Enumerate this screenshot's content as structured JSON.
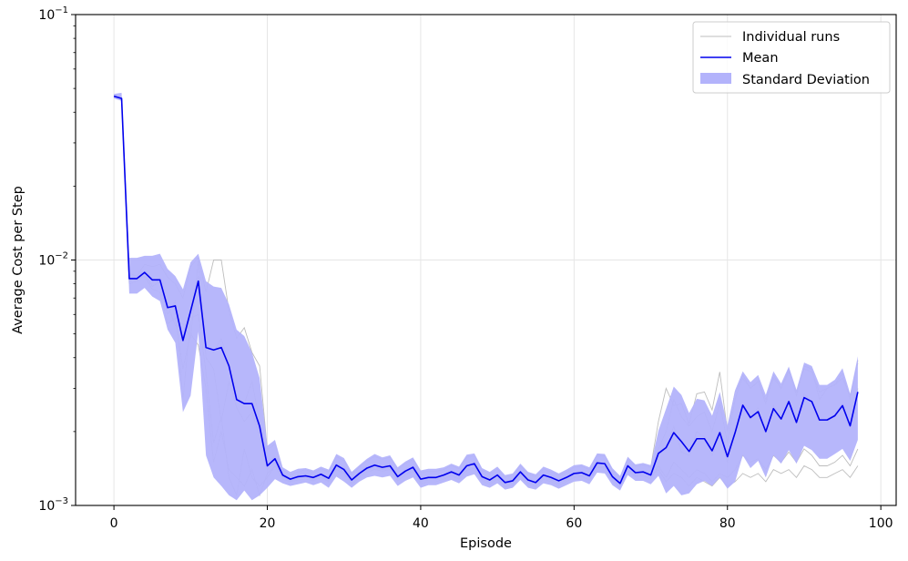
{
  "chart_data": {
    "type": "line",
    "title": "",
    "xlabel": "Episode",
    "ylabel": "Average Cost per Step",
    "yscale": "log",
    "xlim": [
      -5,
      102
    ],
    "ylim": [
      0.001,
      0.1
    ],
    "grid": true,
    "legend_position": "top-right",
    "x_ticks": [
      0,
      20,
      40,
      60,
      80,
      100
    ],
    "x_tick_labels": [
      "0",
      "20",
      "40",
      "60",
      "80",
      "100"
    ],
    "y_ticks": [
      0.001,
      0.01,
      0.1
    ],
    "y_tick_labels": [
      {
        "base": "10",
        "exp": "−3"
      },
      {
        "base": "10",
        "exp": "−2"
      },
      {
        "base": "10",
        "exp": "−1"
      }
    ],
    "colors": {
      "mean": "#0000ee",
      "band": "#b3b3fb",
      "runs": "#bdbdbd",
      "grid": "#e6e6e6"
    },
    "legend": [
      {
        "label": "Individual runs",
        "kind": "thin-line"
      },
      {
        "label": "Mean",
        "kind": "line"
      },
      {
        "label": "Standard Deviation",
        "kind": "patch"
      }
    ],
    "episodes_start": 0,
    "mean": [
      0.0465,
      0.0455,
      0.0084,
      0.0084,
      0.0089,
      0.0083,
      0.0083,
      0.0064,
      0.0065,
      0.0047,
      0.0062,
      0.0082,
      0.0044,
      0.0043,
      0.0044,
      0.0037,
      0.0027,
      0.0026,
      0.0026,
      0.0021,
      0.00145,
      0.00155,
      0.00133,
      0.00128,
      0.00131,
      0.00132,
      0.0013,
      0.00134,
      0.00129,
      0.00146,
      0.0014,
      0.00127,
      0.00135,
      0.00142,
      0.00146,
      0.00143,
      0.00145,
      0.00131,
      0.00138,
      0.00143,
      0.00128,
      0.0013,
      0.0013,
      0.00133,
      0.00137,
      0.00133,
      0.00145,
      0.00148,
      0.00131,
      0.00127,
      0.00133,
      0.00124,
      0.00126,
      0.00137,
      0.00127,
      0.00124,
      0.00133,
      0.0013,
      0.00126,
      0.0013,
      0.00135,
      0.00136,
      0.00132,
      0.00149,
      0.00148,
      0.00131,
      0.00123,
      0.00145,
      0.00136,
      0.00137,
      0.00133,
      0.00163,
      0.00172,
      0.00198,
      0.00182,
      0.00166,
      0.00187,
      0.00187,
      0.00167,
      0.00198,
      0.00158,
      0.00198,
      0.00256,
      0.00228,
      0.00241,
      0.002,
      0.00248,
      0.00225,
      0.00265,
      0.00218,
      0.00275,
      0.00265,
      0.00223,
      0.00223,
      0.00232,
      0.00255,
      0.00211,
      0.0029
    ],
    "std_band_lower": [
      0.0455,
      0.0445,
      0.0073,
      0.0073,
      0.0077,
      0.0071,
      0.0068,
      0.0052,
      0.0046,
      0.0024,
      0.0028,
      0.0051,
      0.0016,
      0.0013,
      0.0012,
      0.0011,
      0.00105,
      0.00115,
      0.00105,
      0.0011,
      0.00118,
      0.00128,
      0.00123,
      0.0012,
      0.00122,
      0.00124,
      0.00121,
      0.00124,
      0.00118,
      0.00131,
      0.00125,
      0.00118,
      0.00125,
      0.0013,
      0.00132,
      0.0013,
      0.00132,
      0.0012,
      0.00126,
      0.0013,
      0.00118,
      0.00121,
      0.00121,
      0.00124,
      0.00127,
      0.00123,
      0.00131,
      0.00134,
      0.00121,
      0.00118,
      0.00123,
      0.00116,
      0.00118,
      0.00127,
      0.00118,
      0.00116,
      0.00123,
      0.00121,
      0.00117,
      0.00121,
      0.00125,
      0.00126,
      0.00122,
      0.00136,
      0.00135,
      0.00121,
      0.00115,
      0.00133,
      0.00126,
      0.00126,
      0.00122,
      0.00132,
      0.00112,
      0.0012,
      0.0011,
      0.00112,
      0.00122,
      0.00126,
      0.0012,
      0.0013,
      0.00117,
      0.00125,
      0.0016,
      0.00142,
      0.00152,
      0.0013,
      0.0016,
      0.00148,
      0.00168,
      0.00148,
      0.00175,
      0.00168,
      0.00155,
      0.00155,
      0.00162,
      0.0017,
      0.00152,
      0.00185
    ],
    "std_band_upper": [
      0.0475,
      0.048,
      0.0102,
      0.0102,
      0.0104,
      0.0104,
      0.0106,
      0.0092,
      0.0086,
      0.0076,
      0.0098,
      0.0106,
      0.0082,
      0.0078,
      0.0077,
      0.0066,
      0.0052,
      0.0049,
      0.0042,
      0.0033,
      0.00175,
      0.00185,
      0.00143,
      0.00137,
      0.00141,
      0.00142,
      0.00139,
      0.00144,
      0.0014,
      0.00162,
      0.00156,
      0.00137,
      0.00146,
      0.00155,
      0.00162,
      0.00157,
      0.0016,
      0.00143,
      0.00151,
      0.00157,
      0.00139,
      0.00141,
      0.00141,
      0.00143,
      0.00148,
      0.00144,
      0.00161,
      0.00163,
      0.00142,
      0.00137,
      0.00144,
      0.00133,
      0.00135,
      0.00148,
      0.00137,
      0.00134,
      0.00144,
      0.0014,
      0.00135,
      0.0014,
      0.00146,
      0.00147,
      0.00143,
      0.00163,
      0.00162,
      0.00142,
      0.00132,
      0.00158,
      0.00147,
      0.00149,
      0.00146,
      0.00202,
      0.00248,
      0.00305,
      0.00282,
      0.00238,
      0.00272,
      0.00268,
      0.00232,
      0.0029,
      0.00212,
      0.00295,
      0.00352,
      0.00318,
      0.0034,
      0.00282,
      0.00352,
      0.00314,
      0.00368,
      0.00296,
      0.00382,
      0.0037,
      0.0031,
      0.0031,
      0.00325,
      0.00362,
      0.00285,
      0.00405
    ],
    "individual_runs": [
      [
        0.0465,
        0.046,
        0.0086,
        0.0086,
        0.0096,
        0.0094,
        0.0096,
        0.0085,
        0.008,
        0.007,
        0.0094,
        0.0102,
        0.0074,
        0.01,
        0.01,
        0.0062,
        0.0048,
        0.0053,
        0.0042,
        0.0037,
        0.00168,
        0.00178,
        0.0014,
        0.00133,
        0.00137,
        0.0014,
        0.00136,
        0.00141,
        0.00137,
        0.00158,
        0.00152,
        0.00134,
        0.00143,
        0.00152,
        0.00158,
        0.00154,
        0.00157,
        0.0014,
        0.00148,
        0.00154,
        0.00136,
        0.00138,
        0.00138,
        0.0014,
        0.00145,
        0.00141,
        0.00157,
        0.00159,
        0.00139,
        0.00134,
        0.00141,
        0.0013,
        0.00132,
        0.00145,
        0.00134,
        0.00131,
        0.00141,
        0.00137,
        0.00132,
        0.00137,
        0.00143,
        0.00144,
        0.0014,
        0.0016,
        0.00159,
        0.00139,
        0.00129,
        0.00155,
        0.00144,
        0.00146,
        0.00143,
        0.0022,
        0.003,
        0.00255,
        0.0026,
        0.00215,
        0.00285,
        0.0029,
        0.00245,
        0.0035,
        0.002,
        0.0029,
        0.0033,
        0.003,
        0.0032,
        0.0026,
        0.0034,
        0.003,
        0.0036,
        0.0028,
        0.0037,
        0.0036,
        0.0027,
        0.003,
        0.0031,
        0.00345,
        0.0027,
        0.0039
      ],
      [
        0.046,
        0.0452,
        0.008,
        0.0082,
        0.0089,
        0.0078,
        0.0082,
        0.0066,
        0.0054,
        0.0055,
        0.0048,
        0.01,
        0.004,
        0.0036,
        0.0022,
        0.0032,
        0.0025,
        0.0022,
        0.0024,
        0.0019,
        0.0014,
        0.0015,
        0.0013,
        0.00126,
        0.00129,
        0.0013,
        0.00127,
        0.00131,
        0.00126,
        0.00143,
        0.00137,
        0.00124,
        0.00132,
        0.00139,
        0.00143,
        0.0014,
        0.00142,
        0.00128,
        0.00135,
        0.0014,
        0.00125,
        0.00127,
        0.00127,
        0.0013,
        0.00134,
        0.0013,
        0.00141,
        0.00144,
        0.00128,
        0.00124,
        0.0013,
        0.00121,
        0.00123,
        0.00134,
        0.00124,
        0.00121,
        0.0013,
        0.00127,
        0.00123,
        0.00127,
        0.00132,
        0.00133,
        0.00129,
        0.00145,
        0.00144,
        0.00128,
        0.0012,
        0.00141,
        0.00133,
        0.00134,
        0.0013,
        0.0016,
        0.0017,
        0.0021,
        0.00165,
        0.0016,
        0.002,
        0.0019,
        0.0016,
        0.0019,
        0.0015,
        0.002,
        0.0026,
        0.0023,
        0.0025,
        0.00195,
        0.00255,
        0.00225,
        0.0027,
        0.00215,
        0.00285,
        0.00265,
        0.00225,
        0.00225,
        0.00235,
        0.0026,
        0.0021,
        0.003
      ],
      [
        0.0468,
        0.0455,
        0.0088,
        0.0086,
        0.0085,
        0.0085,
        0.008,
        0.006,
        0.0068,
        0.0027,
        0.0058,
        0.006,
        0.0035,
        0.0018,
        0.0023,
        0.0013,
        0.0011,
        0.0017,
        0.0013,
        0.0012,
        0.0013,
        0.00145,
        0.00128,
        0.00125,
        0.00127,
        0.00128,
        0.00126,
        0.0013,
        0.00125,
        0.0014,
        0.00135,
        0.00122,
        0.0013,
        0.00137,
        0.0014,
        0.00138,
        0.0014,
        0.00126,
        0.00133,
        0.00138,
        0.00123,
        0.00125,
        0.00125,
        0.00128,
        0.00132,
        0.00128,
        0.00139,
        0.00142,
        0.00126,
        0.00122,
        0.00128,
        0.00119,
        0.00121,
        0.00132,
        0.00122,
        0.00119,
        0.00128,
        0.00125,
        0.00121,
        0.00125,
        0.0013,
        0.00131,
        0.00127,
        0.00143,
        0.00142,
        0.00126,
        0.00118,
        0.00139,
        0.00131,
        0.00132,
        0.00128,
        0.00145,
        0.0013,
        0.0015,
        0.0014,
        0.0013,
        0.0014,
        0.00135,
        0.00125,
        0.00135,
        0.0013,
        0.0014,
        0.0016,
        0.0015,
        0.00155,
        0.0014,
        0.0016,
        0.0015,
        0.00165,
        0.0015,
        0.0017,
        0.0016,
        0.00145,
        0.00145,
        0.0015,
        0.0016,
        0.00145,
        0.0017
      ],
      [
        0.0462,
        0.0458,
        0.0082,
        0.0083,
        0.0086,
        0.0076,
        0.0074,
        0.0055,
        0.0058,
        0.0036,
        0.005,
        0.0045,
        0.003,
        0.0015,
        0.002,
        0.0014,
        0.0013,
        0.0012,
        0.0014,
        0.0011,
        0.00135,
        0.00145,
        0.00131,
        0.00127,
        0.0013,
        0.00131,
        0.00129,
        0.00133,
        0.00128,
        0.00145,
        0.00139,
        0.00126,
        0.00134,
        0.00141,
        0.00145,
        0.00142,
        0.00144,
        0.0013,
        0.00137,
        0.00142,
        0.00127,
        0.00129,
        0.00129,
        0.00132,
        0.00136,
        0.00132,
        0.00144,
        0.00147,
        0.0013,
        0.00126,
        0.00132,
        0.00123,
        0.00125,
        0.00136,
        0.00126,
        0.00123,
        0.00132,
        0.00129,
        0.00125,
        0.00129,
        0.00134,
        0.00135,
        0.00131,
        0.00148,
        0.00147,
        0.0013,
        0.00122,
        0.00144,
        0.00135,
        0.00136,
        0.00132,
        0.0014,
        0.00125,
        0.00135,
        0.0013,
        0.0012,
        0.0013,
        0.00125,
        0.0012,
        0.0013,
        0.0012,
        0.00125,
        0.00135,
        0.0013,
        0.00135,
        0.00125,
        0.0014,
        0.00135,
        0.0014,
        0.0013,
        0.00145,
        0.0014,
        0.0013,
        0.0013,
        0.00135,
        0.0014,
        0.0013,
        0.00145
      ],
      [
        0.0466,
        0.045,
        0.0085,
        0.0085,
        0.0088,
        0.0082,
        0.0085,
        0.0064,
        0.0066,
        0.0048,
        0.006,
        0.0086,
        0.0045,
        0.0042,
        0.0048,
        0.0038,
        0.0028,
        0.0026,
        0.0032,
        0.0022,
        0.0015,
        0.00158,
        0.00136,
        0.0013,
        0.00133,
        0.00135,
        0.00132,
        0.00136,
        0.0013,
        0.00148,
        0.00142,
        0.00128,
        0.00137,
        0.00144,
        0.00148,
        0.00145,
        0.00147,
        0.00132,
        0.00139,
        0.00145,
        0.00129,
        0.00131,
        0.00131,
        0.00134,
        0.00138,
        0.00134,
        0.00147,
        0.0015,
        0.00132,
        0.00128,
        0.00134,
        0.00125,
        0.00127,
        0.00138,
        0.00128,
        0.00125,
        0.00134,
        0.00131,
        0.00127,
        0.00131,
        0.00136,
        0.00137,
        0.00133,
        0.0015,
        0.00149,
        0.00132,
        0.00124,
        0.00146,
        0.00137,
        0.00138,
        0.00134,
        0.0017,
        0.002,
        0.0027,
        0.0023,
        0.0021,
        0.0023,
        0.0024,
        0.002,
        0.0026,
        0.0018,
        0.0027,
        0.0034,
        0.003,
        0.0032,
        0.0027,
        0.0033,
        0.003,
        0.0035,
        0.0029,
        0.0036,
        0.0035,
        0.0029,
        0.003,
        0.0031,
        0.0033,
        0.0028,
        0.0038
      ]
    ]
  }
}
